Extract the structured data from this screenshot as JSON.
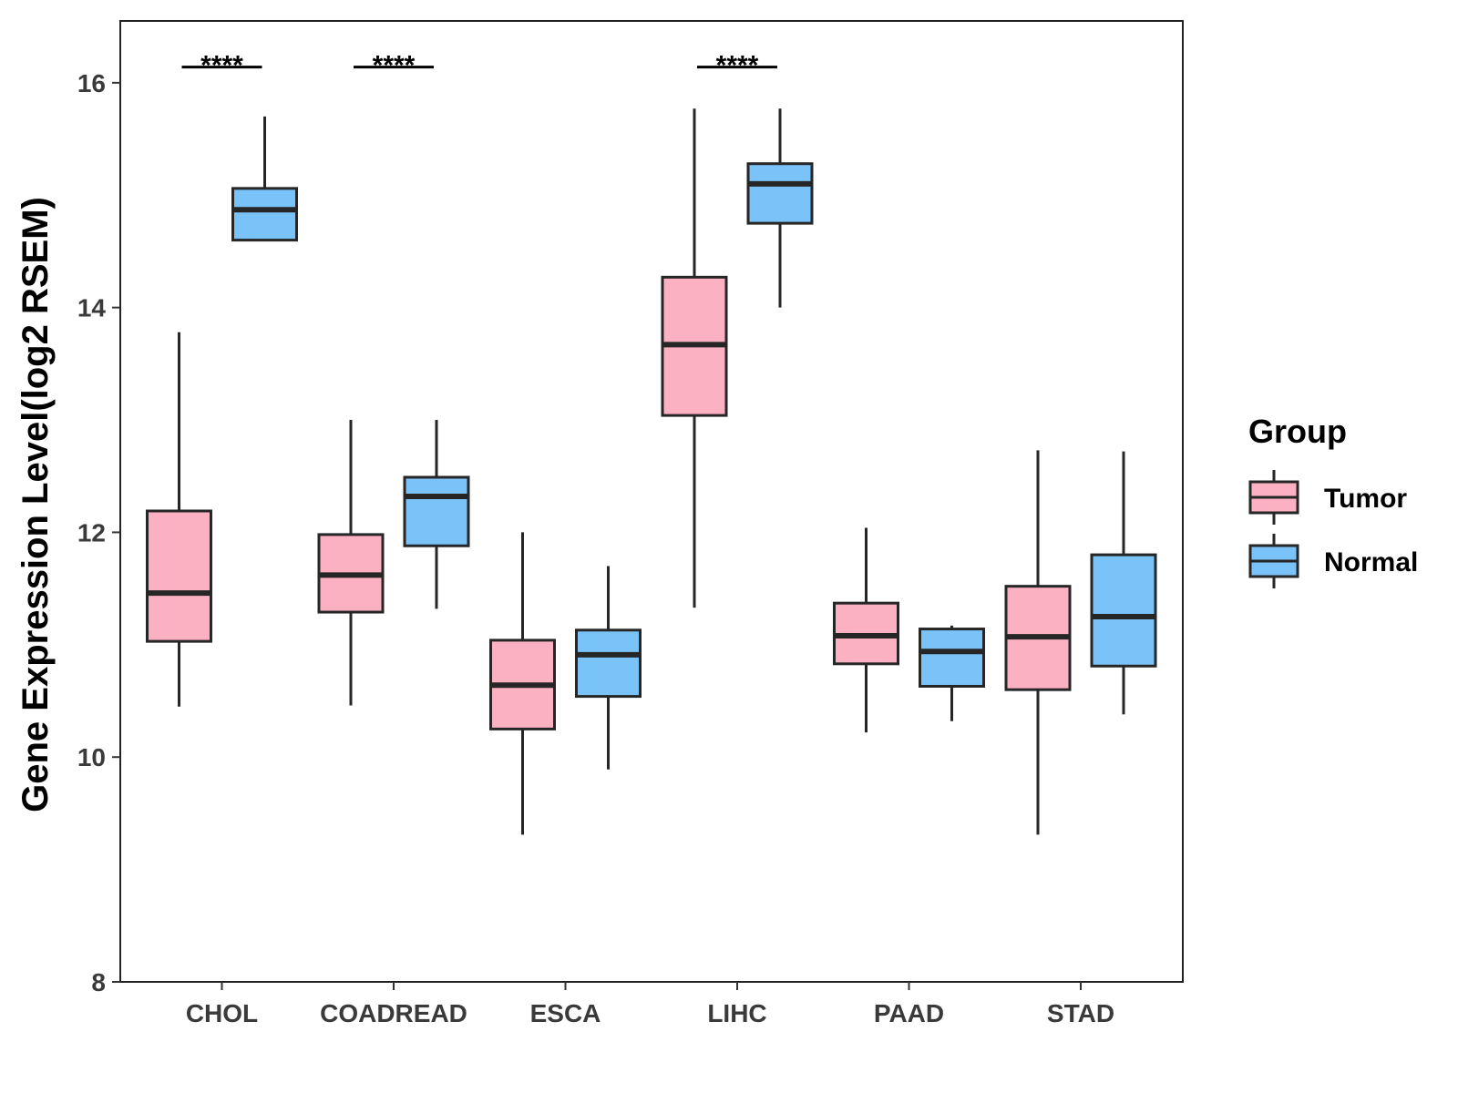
{
  "chart_data": {
    "type": "boxplot",
    "title": "",
    "xlabel": "",
    "ylabel": "Gene Expression Level(log2 RSEM)",
    "ylim": [
      8,
      16.55
    ],
    "yticks": [
      8,
      10,
      12,
      14,
      16
    ],
    "categories": [
      "CHOL",
      "COADREAD",
      "ESCA",
      "LIHC",
      "PAAD",
      "STAD"
    ],
    "legend": {
      "title": "Group",
      "position": "right",
      "entries": [
        {
          "label": "Tumor",
          "color": "#FCB1C3"
        },
        {
          "label": "Normal",
          "color": "#7AC3F8"
        }
      ]
    },
    "series": [
      {
        "name": "Tumor",
        "color": "#FCB1C3",
        "boxes": [
          {
            "category": "CHOL",
            "min": 10.45,
            "q1": 11.03,
            "median": 11.46,
            "q3": 12.19,
            "max": 13.78
          },
          {
            "category": "COADREAD",
            "min": 10.46,
            "q1": 11.29,
            "median": 11.62,
            "q3": 11.98,
            "max": 13.0
          },
          {
            "category": "ESCA",
            "min": 9.31,
            "q1": 10.25,
            "median": 10.64,
            "q3": 11.04,
            "max": 12.0
          },
          {
            "category": "LIHC",
            "min": 11.33,
            "q1": 13.04,
            "median": 13.67,
            "q3": 14.27,
            "max": 15.77
          },
          {
            "category": "PAAD",
            "min": 10.22,
            "q1": 10.83,
            "median": 11.08,
            "q3": 11.37,
            "max": 12.04
          },
          {
            "category": "STAD",
            "min": 9.31,
            "q1": 10.6,
            "median": 11.07,
            "q3": 11.52,
            "max": 12.73
          }
        ]
      },
      {
        "name": "Normal",
        "color": "#7AC3F8",
        "boxes": [
          {
            "category": "CHOL",
            "min": 14.6,
            "q1": 14.6,
            "median": 14.87,
            "q3": 15.06,
            "max": 15.7
          },
          {
            "category": "COADREAD",
            "min": 11.32,
            "q1": 11.88,
            "median": 12.32,
            "q3": 12.49,
            "max": 13.0
          },
          {
            "category": "ESCA",
            "min": 9.89,
            "q1": 10.54,
            "median": 10.91,
            "q3": 11.13,
            "max": 11.7
          },
          {
            "category": "LIHC",
            "min": 14.0,
            "q1": 14.75,
            "median": 15.1,
            "q3": 15.28,
            "max": 15.77
          },
          {
            "category": "PAAD",
            "min": 10.32,
            "q1": 10.63,
            "median": 10.94,
            "q3": 11.14,
            "max": 11.17
          },
          {
            "category": "STAD",
            "min": 10.38,
            "q1": 10.81,
            "median": 11.25,
            "q3": 11.8,
            "max": 12.72
          }
        ]
      }
    ],
    "annotations": [
      {
        "category": "CHOL",
        "text": "****",
        "y": 16.14
      },
      {
        "category": "COADREAD",
        "text": "****",
        "y": 16.14
      },
      {
        "category": "LIHC",
        "text": "****",
        "y": 16.14
      }
    ]
  }
}
